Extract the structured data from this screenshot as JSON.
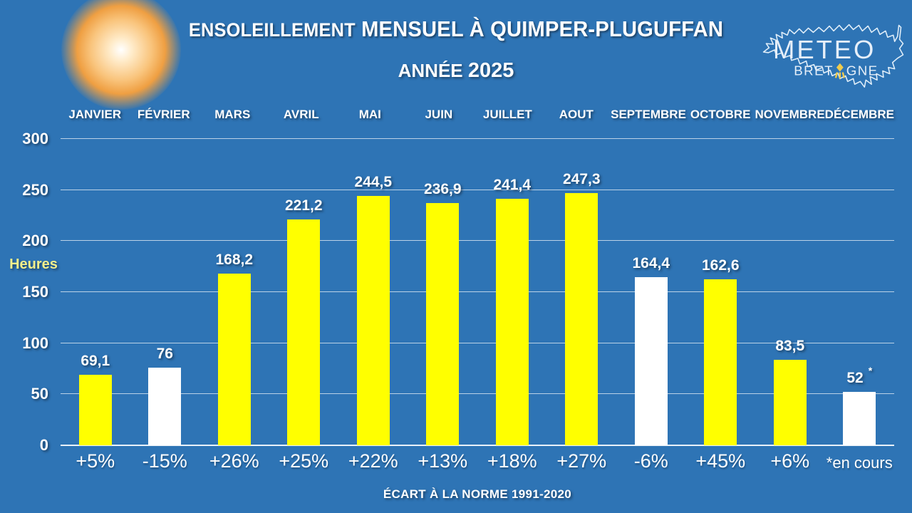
{
  "page": {
    "background": "#2E74B5"
  },
  "header": {
    "title_word1": "ENSOLEILLEMENT",
    "title_rest": " MENSUEL À QUIMPER-PLUGUFFAN",
    "subtitle_word": "ANNÉE ",
    "subtitle_year": "2025"
  },
  "logo": {
    "meteo": "METEO",
    "bretagne_left": "BRET",
    "bretagne_right": "GNE"
  },
  "colors": {
    "background": "#2E74B5",
    "bar_yellow": "#FFFF00",
    "bar_white": "#FFFFFF",
    "ylabel_yellow": "#F3EF8B",
    "gridline": "rgba(255,255,255,0.68)",
    "ermine_yellow": "#EFCB4D",
    "sun_orange": "#EF9F42"
  },
  "chart_data": {
    "type": "bar",
    "title": "ENSOLEILLEMENT MENSUEL À QUIMPER-PLUGUFFAN",
    "subtitle": "ANNÉE 2025",
    "ylabel": "Heures",
    "ylim": [
      0,
      300
    ],
    "yticks": [
      0,
      50,
      100,
      150,
      200,
      250,
      300
    ],
    "grid": true,
    "legend": "none",
    "categories": [
      "JANVIER",
      "FÉVRIER",
      "MARS",
      "AVRIL",
      "MAI",
      "JUIN",
      "JUILLET",
      "AOUT",
      "SEPTEMBRE",
      "OCTOBRE",
      "NOVEMBRE",
      "DÉCEMBRE"
    ],
    "values": [
      69.1,
      76,
      168.2,
      221.2,
      244.5,
      236.9,
      241.4,
      247.3,
      164.4,
      162.6,
      83.5,
      52
    ],
    "value_labels": [
      "69,1",
      "76",
      "168,2",
      "221,2",
      "244,5",
      "236,9",
      "241,4",
      "247,3",
      "164,4",
      "162,6",
      "83,5",
      "52"
    ],
    "value_notes": [
      "",
      "",
      "",
      "",
      "",
      "",
      "",
      "",
      "",
      "",
      "",
      "*"
    ],
    "deviations": [
      "+5%",
      "-15%",
      "+26%",
      "+25%",
      "+22%",
      "+13%",
      "+18%",
      "+27%",
      "-6%",
      "+45%",
      "+6%",
      "*en cours"
    ],
    "deviation_is_footnote": [
      false,
      false,
      false,
      false,
      false,
      false,
      false,
      false,
      false,
      false,
      false,
      true
    ],
    "bar_colors": [
      "#FFFF00",
      "#FFFFFF",
      "#FFFF00",
      "#FFFF00",
      "#FFFF00",
      "#FFFF00",
      "#FFFF00",
      "#FFFF00",
      "#FFFFFF",
      "#FFFF00",
      "#FFFF00",
      "#FFFFFF"
    ],
    "footer": "ÉCART À LA NORME 1991-2020"
  }
}
